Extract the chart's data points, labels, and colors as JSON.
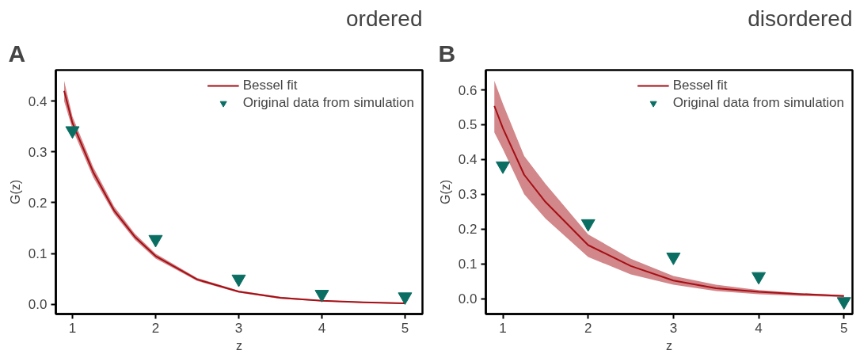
{
  "chart_data": [
    {
      "type": "line",
      "title": "ordered",
      "annotations": [
        "A"
      ],
      "xlabel": "z",
      "ylabel": "G(z)",
      "xlim": [
        0.8,
        5.21
      ],
      "ylim": [
        -0.019,
        0.461
      ],
      "xticks": [
        1,
        2,
        3,
        4,
        5
      ],
      "yticks": [
        {
          "value": 0,
          "label": "0.0"
        },
        0.1,
        0.2,
        0.3,
        0.4
      ],
      "legend": "top right",
      "series": [
        {
          "name": "Bessel fit",
          "type": "line",
          "color": "#a50f15",
          "x": [
            0.9,
            1.0,
            1.25,
            1.5,
            1.75,
            2.0,
            2.5,
            3.0,
            3.5,
            4.0,
            4.5,
            5.0
          ],
          "values": [
            0.42,
            0.357,
            0.26,
            0.185,
            0.133,
            0.095,
            0.049,
            0.025,
            0.013,
            0.007,
            0.004,
            0.002
          ],
          "lower": [
            0.4,
            0.345,
            0.25,
            0.178,
            0.127,
            0.09,
            0.046,
            0.023,
            0.011,
            0.006,
            0.003,
            0.001
          ],
          "upper": [
            0.44,
            0.37,
            0.27,
            0.193,
            0.139,
            0.1,
            0.052,
            0.027,
            0.015,
            0.008,
            0.005,
            0.003
          ]
        },
        {
          "name": "Original data from simulation",
          "type": "scatter",
          "marker": "triangle",
          "color": "#0b6e63",
          "x": [
            1,
            2,
            3,
            4,
            5
          ],
          "values": [
            0.342,
            0.128,
            0.05,
            0.02,
            0.015
          ]
        }
      ]
    },
    {
      "type": "line",
      "title": "disordered",
      "annotations": [
        "B"
      ],
      "xlabel": "z",
      "ylabel": "G(z)",
      "xlim": [
        0.8,
        5.1
      ],
      "ylim": [
        -0.044,
        0.657
      ],
      "xticks": [
        1,
        2,
        3,
        4,
        5
      ],
      "yticks": [
        {
          "value": 0,
          "label": "0.0"
        },
        0.1,
        0.2,
        0.3,
        0.4,
        0.5,
        0.6
      ],
      "legend": "top right",
      "series": [
        {
          "name": "Bessel fit",
          "type": "line",
          "color": "#a50f15",
          "x": [
            0.9,
            1.0,
            1.25,
            1.5,
            2.0,
            2.5,
            3.0,
            3.5,
            4.0,
            4.5,
            5.0
          ],
          "values": [
            0.554,
            0.49,
            0.356,
            0.278,
            0.154,
            0.094,
            0.052,
            0.03,
            0.02,
            0.013,
            0.008
          ],
          "lower": [
            0.478,
            0.43,
            0.3,
            0.23,
            0.12,
            0.07,
            0.04,
            0.022,
            0.013,
            0.008,
            0.005
          ],
          "upper": [
            0.626,
            0.56,
            0.41,
            0.33,
            0.185,
            0.115,
            0.065,
            0.04,
            0.025,
            0.016,
            0.01
          ]
        },
        {
          "name": "Original data from simulation",
          "type": "scatter",
          "marker": "triangle",
          "color": "#0b6e63",
          "x": [
            1,
            2,
            3,
            4,
            5
          ],
          "values": [
            0.382,
            0.216,
            0.12,
            0.064,
            -0.008
          ]
        }
      ]
    }
  ]
}
